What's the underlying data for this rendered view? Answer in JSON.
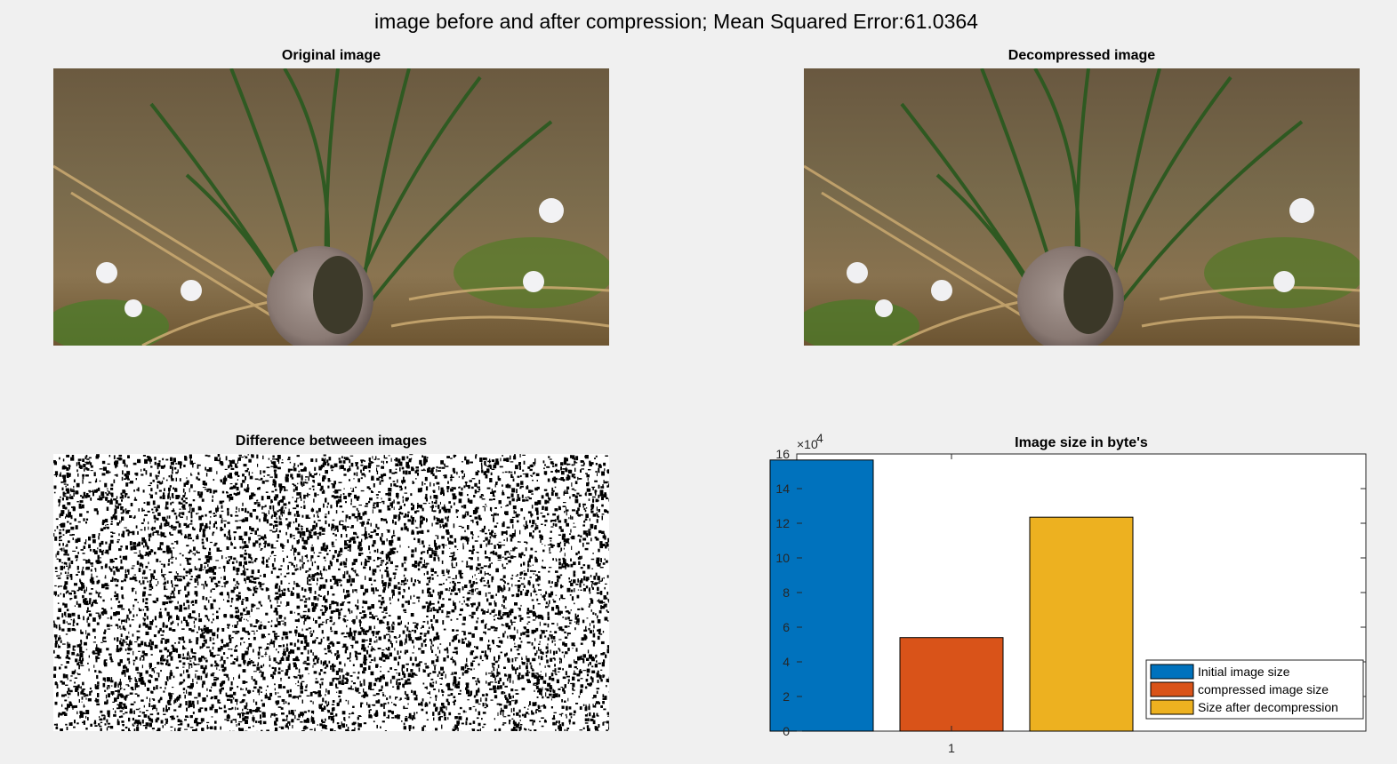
{
  "figure": {
    "suptitle": "image before and after compression; Mean Squared Error:61.0364"
  },
  "panels": {
    "original": {
      "title": "Original image"
    },
    "decompressed": {
      "title": "Decompressed image"
    },
    "difference": {
      "title": "Difference betweeen images"
    }
  },
  "chart_data": {
    "type": "bar",
    "title": "Image size in byte's",
    "xlabel": "",
    "ylabel": "",
    "x": [
      1
    ],
    "x_tick_labels": [
      "1"
    ],
    "ylim": [
      0,
      16
    ],
    "y_ticks": [
      0,
      2,
      4,
      6,
      8,
      10,
      12,
      14,
      16
    ],
    "y_exponent_label": "×10",
    "y_exponent_power": "4",
    "series": [
      {
        "name": "Initial image size",
        "values": [
          15.65
        ],
        "color": "#0072BD"
      },
      {
        "name": "compressed image size",
        "values": [
          5.4
        ],
        "color": "#D95319"
      },
      {
        "name": "Size after decompression",
        "values": [
          12.35
        ],
        "color": "#EDB120"
      }
    ],
    "grid": false,
    "legend_position": "bottom-right"
  }
}
